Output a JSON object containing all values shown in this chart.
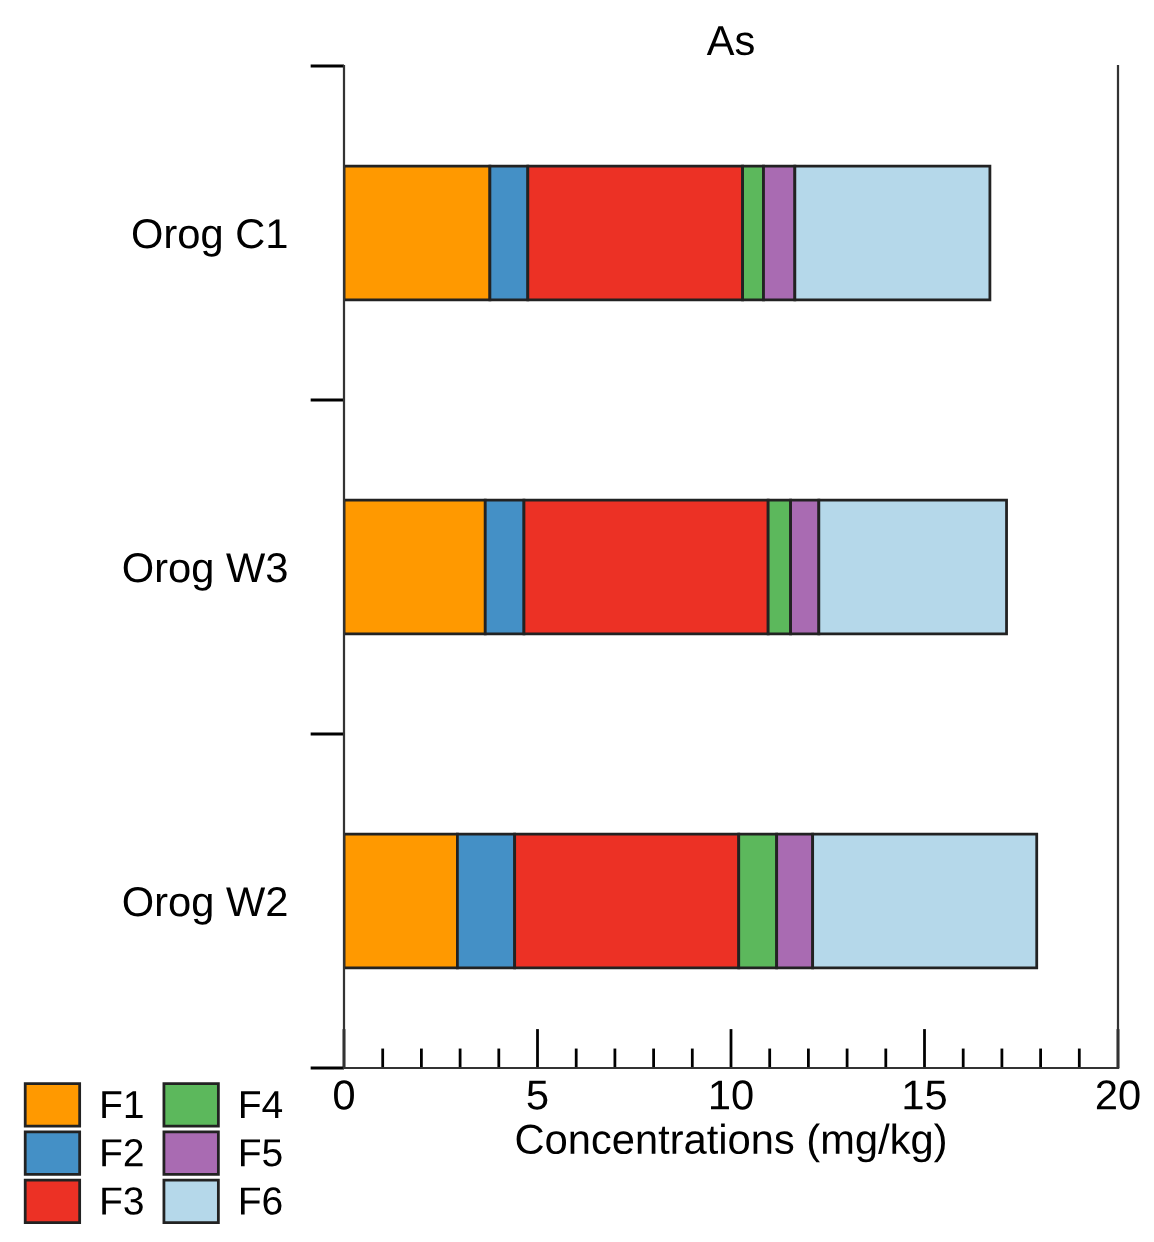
{
  "chart_data": {
    "type": "bar",
    "orientation": "horizontal",
    "stacked": true,
    "title": "As",
    "xlabel": "Concentrations (mg/kg)",
    "categories": [
      "Orog C1",
      "Orog W3",
      "Orog W2"
    ],
    "series": [
      {
        "name": "F1",
        "color": "#ff9900",
        "values": [
          3.77,
          3.65,
          2.93
        ]
      },
      {
        "name": "F2",
        "color": "#4490c6",
        "values": [
          0.98,
          1.0,
          1.48
        ]
      },
      {
        "name": "F3",
        "color": "#ec3125",
        "values": [
          5.55,
          6.31,
          5.79
        ]
      },
      {
        "name": "F4",
        "color": "#5cb85c",
        "values": [
          0.54,
          0.58,
          0.98
        ]
      },
      {
        "name": "F5",
        "color": "#a96bb2",
        "values": [
          0.81,
          0.73,
          0.93
        ]
      },
      {
        "name": "F6",
        "color": "#b5d8ea",
        "values": [
          5.04,
          4.85,
          5.79
        ]
      }
    ],
    "xlim": [
      0,
      20
    ],
    "xticks": [
      0,
      5,
      10,
      15,
      20
    ],
    "grid": false,
    "legend": "bottom left"
  }
}
